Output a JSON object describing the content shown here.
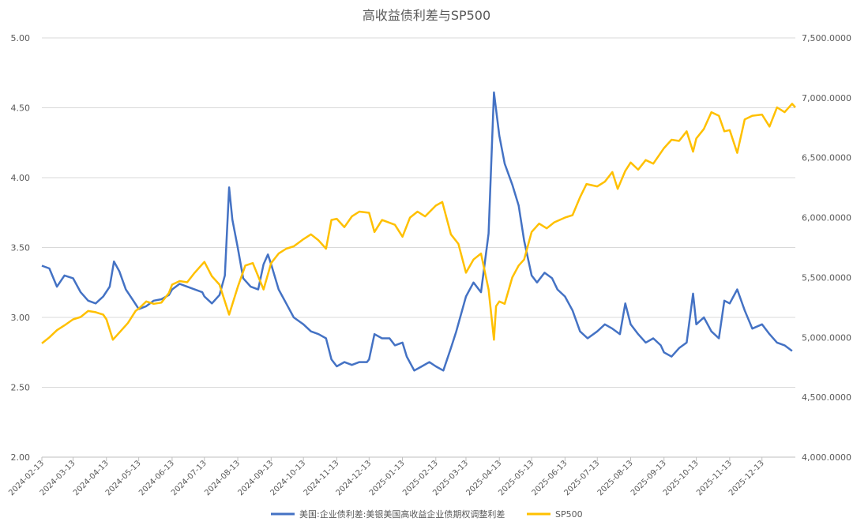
{
  "chart_data": {
    "type": "line",
    "title": "高收益债利差与SP500",
    "grid": true,
    "legend_position": "bottom",
    "y_left": {
      "min": 2.0,
      "max": 5.0,
      "ticks": [
        "2.00",
        "2.50",
        "3.00",
        "3.50",
        "4.00",
        "4.50",
        "5.00"
      ]
    },
    "y_right": {
      "min": 4000,
      "max": 7500,
      "ticks": [
        "4,000.0000",
        "4,500.0000",
        "5,000.0000",
        "5,500.0000",
        "6,000.0000",
        "6,500.0000",
        "7,000.0000",
        "7,500.0000"
      ]
    },
    "x_ticks": [
      "2024-02-13",
      "2024-03-13",
      "2024-04-13",
      "2024-05-13",
      "2024-06-13",
      "2024-07-13",
      "2024-08-13",
      "2024-09-13",
      "2024-10-13",
      "2024-11-13",
      "2024-12-13",
      "2025-01-13",
      "2025-02-13",
      "2025-03-13",
      "2025-04-13",
      "2025-05-13",
      "2025-06-13",
      "2025-07-13",
      "2025-08-13",
      "2025-09-13",
      "2025-10-13",
      "2025-11-13",
      "2025-12-13"
    ],
    "x_range": [
      "2024-02-13",
      "2026-01-13"
    ],
    "series": [
      {
        "name": "美国:企业债利差:美银美国高收益企业债期权调整利差",
        "axis": "left",
        "color": "#4472C4",
        "points": [
          [
            "2024-02-13",
            3.37
          ],
          [
            "2024-02-20",
            3.35
          ],
          [
            "2024-02-27",
            3.22
          ],
          [
            "2024-03-05",
            3.3
          ],
          [
            "2024-03-13",
            3.28
          ],
          [
            "2024-03-20",
            3.18
          ],
          [
            "2024-03-27",
            3.12
          ],
          [
            "2024-04-03",
            3.1
          ],
          [
            "2024-04-10",
            3.15
          ],
          [
            "2024-04-16",
            3.22
          ],
          [
            "2024-04-20",
            3.4
          ],
          [
            "2024-04-25",
            3.33
          ],
          [
            "2024-05-01",
            3.2
          ],
          [
            "2024-05-08",
            3.12
          ],
          [
            "2024-05-13",
            3.06
          ],
          [
            "2024-05-20",
            3.08
          ],
          [
            "2024-05-27",
            3.12
          ],
          [
            "2024-06-03",
            3.13
          ],
          [
            "2024-06-10",
            3.16
          ],
          [
            "2024-06-13",
            3.2
          ],
          [
            "2024-06-20",
            3.24
          ],
          [
            "2024-06-27",
            3.22
          ],
          [
            "2024-07-04",
            3.2
          ],
          [
            "2024-07-11",
            3.18
          ],
          [
            "2024-07-13",
            3.15
          ],
          [
            "2024-07-20",
            3.1
          ],
          [
            "2024-07-27",
            3.16
          ],
          [
            "2024-08-01",
            3.3
          ],
          [
            "2024-08-05",
            3.93
          ],
          [
            "2024-08-08",
            3.7
          ],
          [
            "2024-08-13",
            3.5
          ],
          [
            "2024-08-18",
            3.28
          ],
          [
            "2024-08-25",
            3.22
          ],
          [
            "2024-09-01",
            3.2
          ],
          [
            "2024-09-06",
            3.38
          ],
          [
            "2024-09-10",
            3.45
          ],
          [
            "2024-09-13",
            3.38
          ],
          [
            "2024-09-20",
            3.2
          ],
          [
            "2024-09-27",
            3.1
          ],
          [
            "2024-10-04",
            3.0
          ],
          [
            "2024-10-13",
            2.95
          ],
          [
            "2024-10-20",
            2.9
          ],
          [
            "2024-10-27",
            2.88
          ],
          [
            "2024-11-03",
            2.85
          ],
          [
            "2024-11-08",
            2.7
          ],
          [
            "2024-11-13",
            2.65
          ],
          [
            "2024-11-20",
            2.68
          ],
          [
            "2024-11-27",
            2.66
          ],
          [
            "2024-12-04",
            2.68
          ],
          [
            "2024-12-11",
            2.68
          ],
          [
            "2024-12-13",
            2.7
          ],
          [
            "2024-12-18",
            2.88
          ],
          [
            "2024-12-25",
            2.85
          ],
          [
            "2025-01-01",
            2.85
          ],
          [
            "2025-01-06",
            2.8
          ],
          [
            "2025-01-13",
            2.82
          ],
          [
            "2025-01-17",
            2.72
          ],
          [
            "2025-01-24",
            2.62
          ],
          [
            "2025-01-31",
            2.65
          ],
          [
            "2025-02-07",
            2.68
          ],
          [
            "2025-02-13",
            2.65
          ],
          [
            "2025-02-20",
            2.62
          ],
          [
            "2025-02-27",
            2.78
          ],
          [
            "2025-03-04",
            2.9
          ],
          [
            "2025-03-13",
            3.15
          ],
          [
            "2025-03-20",
            3.25
          ],
          [
            "2025-03-27",
            3.18
          ],
          [
            "2025-04-03",
            3.6
          ],
          [
            "2025-04-08",
            4.61
          ],
          [
            "2025-04-13",
            4.3
          ],
          [
            "2025-04-18",
            4.1
          ],
          [
            "2025-04-25",
            3.95
          ],
          [
            "2025-05-01",
            3.8
          ],
          [
            "2025-05-06",
            3.55
          ],
          [
            "2025-05-13",
            3.3
          ],
          [
            "2025-05-18",
            3.25
          ],
          [
            "2025-05-25",
            3.32
          ],
          [
            "2025-06-01",
            3.28
          ],
          [
            "2025-06-06",
            3.2
          ],
          [
            "2025-06-13",
            3.15
          ],
          [
            "2025-06-20",
            3.05
          ],
          [
            "2025-06-27",
            2.9
          ],
          [
            "2025-07-04",
            2.85
          ],
          [
            "2025-07-13",
            2.9
          ],
          [
            "2025-07-20",
            2.95
          ],
          [
            "2025-07-27",
            2.92
          ],
          [
            "2025-08-03",
            2.88
          ],
          [
            "2025-08-08",
            3.1
          ],
          [
            "2025-08-13",
            2.95
          ],
          [
            "2025-08-20",
            2.88
          ],
          [
            "2025-08-27",
            2.82
          ],
          [
            "2025-09-03",
            2.85
          ],
          [
            "2025-09-10",
            2.8
          ],
          [
            "2025-09-13",
            2.75
          ],
          [
            "2025-09-20",
            2.72
          ],
          [
            "2025-09-27",
            2.78
          ],
          [
            "2025-10-04",
            2.82
          ],
          [
            "2025-10-10",
            3.17
          ],
          [
            "2025-10-13",
            2.95
          ],
          [
            "2025-10-20",
            3.0
          ],
          [
            "2025-10-27",
            2.9
          ],
          [
            "2025-11-03",
            2.85
          ],
          [
            "2025-11-08",
            3.12
          ],
          [
            "2025-11-13",
            3.1
          ],
          [
            "2025-11-20",
            3.2
          ],
          [
            "2025-11-27",
            3.05
          ],
          [
            "2025-12-04",
            2.92
          ],
          [
            "2025-12-13",
            2.95
          ],
          [
            "2025-12-20",
            2.88
          ],
          [
            "2025-12-27",
            2.82
          ],
          [
            "2026-01-03",
            2.8
          ],
          [
            "2026-01-10",
            2.76
          ]
        ]
      },
      {
        "name": "SP500",
        "axis": "right",
        "color": "#FFC000",
        "points": [
          [
            "2024-02-13",
            4950
          ],
          [
            "2024-02-20",
            5000
          ],
          [
            "2024-02-27",
            5060
          ],
          [
            "2024-03-05",
            5100
          ],
          [
            "2024-03-13",
            5150
          ],
          [
            "2024-03-20",
            5170
          ],
          [
            "2024-03-27",
            5220
          ],
          [
            "2024-04-03",
            5210
          ],
          [
            "2024-04-10",
            5190
          ],
          [
            "2024-04-13",
            5150
          ],
          [
            "2024-04-19",
            4980
          ],
          [
            "2024-04-26",
            5050
          ],
          [
            "2024-05-03",
            5120
          ],
          [
            "2024-05-10",
            5220
          ],
          [
            "2024-05-13",
            5240
          ],
          [
            "2024-05-20",
            5300
          ],
          [
            "2024-05-27",
            5280
          ],
          [
            "2024-06-03",
            5290
          ],
          [
            "2024-06-10",
            5370
          ],
          [
            "2024-06-13",
            5440
          ],
          [
            "2024-06-20",
            5470
          ],
          [
            "2024-06-27",
            5460
          ],
          [
            "2024-07-04",
            5540
          ],
          [
            "2024-07-13",
            5630
          ],
          [
            "2024-07-20",
            5510
          ],
          [
            "2024-07-27",
            5440
          ],
          [
            "2024-08-05",
            5190
          ],
          [
            "2024-08-13",
            5420
          ],
          [
            "2024-08-20",
            5600
          ],
          [
            "2024-08-27",
            5620
          ],
          [
            "2024-09-06",
            5400
          ],
          [
            "2024-09-13",
            5620
          ],
          [
            "2024-09-20",
            5700
          ],
          [
            "2024-09-27",
            5740
          ],
          [
            "2024-10-04",
            5760
          ],
          [
            "2024-10-13",
            5820
          ],
          [
            "2024-10-20",
            5860
          ],
          [
            "2024-10-27",
            5810
          ],
          [
            "2024-11-03",
            5740
          ],
          [
            "2024-11-08",
            5980
          ],
          [
            "2024-11-13",
            5990
          ],
          [
            "2024-11-20",
            5920
          ],
          [
            "2024-11-27",
            6010
          ],
          [
            "2024-12-04",
            6050
          ],
          [
            "2024-12-13",
            6040
          ],
          [
            "2024-12-18",
            5880
          ],
          [
            "2024-12-25",
            5980
          ],
          [
            "2025-01-06",
            5940
          ],
          [
            "2025-01-13",
            5840
          ],
          [
            "2025-01-20",
            6000
          ],
          [
            "2025-01-27",
            6050
          ],
          [
            "2025-02-03",
            6010
          ],
          [
            "2025-02-13",
            6100
          ],
          [
            "2025-02-19",
            6130
          ],
          [
            "2025-02-27",
            5860
          ],
          [
            "2025-03-06",
            5780
          ],
          [
            "2025-03-13",
            5540
          ],
          [
            "2025-03-20",
            5650
          ],
          [
            "2025-03-27",
            5700
          ],
          [
            "2025-04-03",
            5400
          ],
          [
            "2025-04-08",
            4980
          ],
          [
            "2025-04-10",
            5260
          ],
          [
            "2025-04-13",
            5300
          ],
          [
            "2025-04-18",
            5280
          ],
          [
            "2025-04-25",
            5500
          ],
          [
            "2025-05-01",
            5600
          ],
          [
            "2025-05-06",
            5650
          ],
          [
            "2025-05-13",
            5880
          ],
          [
            "2025-05-20",
            5950
          ],
          [
            "2025-05-27",
            5910
          ],
          [
            "2025-06-03",
            5960
          ],
          [
            "2025-06-13",
            6000
          ],
          [
            "2025-06-20",
            6020
          ],
          [
            "2025-06-27",
            6170
          ],
          [
            "2025-07-03",
            6280
          ],
          [
            "2025-07-13",
            6260
          ],
          [
            "2025-07-20",
            6300
          ],
          [
            "2025-07-27",
            6380
          ],
          [
            "2025-08-01",
            6240
          ],
          [
            "2025-08-08",
            6390
          ],
          [
            "2025-08-13",
            6460
          ],
          [
            "2025-08-20",
            6400
          ],
          [
            "2025-08-27",
            6480
          ],
          [
            "2025-09-03",
            6450
          ],
          [
            "2025-09-13",
            6580
          ],
          [
            "2025-09-20",
            6650
          ],
          [
            "2025-09-27",
            6640
          ],
          [
            "2025-10-04",
            6720
          ],
          [
            "2025-10-10",
            6550
          ],
          [
            "2025-10-13",
            6660
          ],
          [
            "2025-10-20",
            6740
          ],
          [
            "2025-10-27",
            6880
          ],
          [
            "2025-11-03",
            6850
          ],
          [
            "2025-11-08",
            6720
          ],
          [
            "2025-11-13",
            6730
          ],
          [
            "2025-11-20",
            6540
          ],
          [
            "2025-11-27",
            6820
          ],
          [
            "2025-12-04",
            6850
          ],
          [
            "2025-12-13",
            6860
          ],
          [
            "2025-12-20",
            6760
          ],
          [
            "2025-12-27",
            6920
          ],
          [
            "2026-01-03",
            6880
          ],
          [
            "2026-01-10",
            6950
          ],
          [
            "2026-01-13",
            6920
          ]
        ]
      }
    ]
  }
}
